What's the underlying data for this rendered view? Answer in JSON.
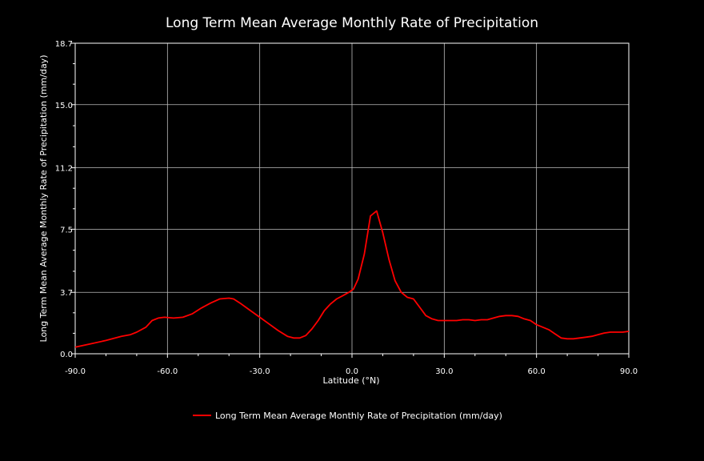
{
  "chart_data": {
    "type": "line",
    "title": "Long Term Mean Average Monthly Rate of Precipitation",
    "xlabel": "Latitude (°N)",
    "ylabel": "Long Term Mean Average Monthly Rate of Precipitation (mm/day)",
    "xlim": [
      -90,
      90
    ],
    "ylim": [
      0,
      18.7
    ],
    "x_ticks": [
      -90,
      -60,
      -30,
      0,
      30,
      60,
      90
    ],
    "x_tick_labels": [
      "-90.0",
      "-60.0",
      "-30.0",
      "0.0",
      "30.0",
      "60.0",
      "90.0"
    ],
    "y_ticks": [
      0,
      3.7,
      7.5,
      11.2,
      15.0,
      18.7
    ],
    "y_tick_labels": [
      "0.0",
      "3.7",
      "7.5",
      "11.2",
      "15.0",
      "18.7"
    ],
    "grid": true,
    "legend": "bottom",
    "series": [
      {
        "name": "Long Term Mean Average Monthly Rate of Precipitation (mm/day)",
        "color": "#ff0000",
        "x": [
          -90,
          -85,
          -80,
          -75,
          -72,
          -70,
          -67,
          -65,
          -63,
          -61,
          -58,
          -55,
          -52,
          -49,
          -46,
          -43,
          -40,
          -38.5,
          -36,
          -33,
          -30,
          -27,
          -24,
          -21,
          -19,
          -17,
          -15,
          -13,
          -11,
          -9,
          -7,
          -5,
          -3,
          -1,
          0.5,
          2,
          4,
          6,
          8,
          10,
          12,
          14,
          16,
          18,
          20,
          22,
          24,
          26,
          28,
          30,
          32,
          34,
          36,
          38,
          40,
          42,
          44,
          46,
          48,
          50,
          52,
          54,
          56,
          58,
          60,
          62,
          64,
          66,
          68,
          70,
          72,
          74,
          76,
          78,
          80,
          82,
          84,
          86,
          88,
          90
        ],
        "y": [
          0.4,
          0.6,
          0.8,
          1.05,
          1.15,
          1.3,
          1.6,
          2.0,
          2.15,
          2.2,
          2.15,
          2.2,
          2.4,
          2.75,
          3.05,
          3.3,
          3.35,
          3.3,
          3.0,
          2.6,
          2.2,
          1.8,
          1.4,
          1.05,
          0.95,
          0.95,
          1.1,
          1.5,
          2.0,
          2.6,
          3.0,
          3.3,
          3.5,
          3.7,
          3.9,
          4.5,
          6.0,
          8.3,
          8.6,
          7.3,
          5.7,
          4.4,
          3.7,
          3.4,
          3.3,
          2.8,
          2.3,
          2.1,
          2.0,
          2.0,
          2.0,
          2.0,
          2.05,
          2.05,
          2.0,
          2.05,
          2.05,
          2.15,
          2.25,
          2.3,
          2.3,
          2.25,
          2.1,
          2.0,
          1.75,
          1.6,
          1.45,
          1.2,
          0.95,
          0.9,
          0.9,
          0.95,
          1.0,
          1.05,
          1.15,
          1.25,
          1.3,
          1.3,
          1.3,
          1.35
        ]
      }
    ]
  }
}
